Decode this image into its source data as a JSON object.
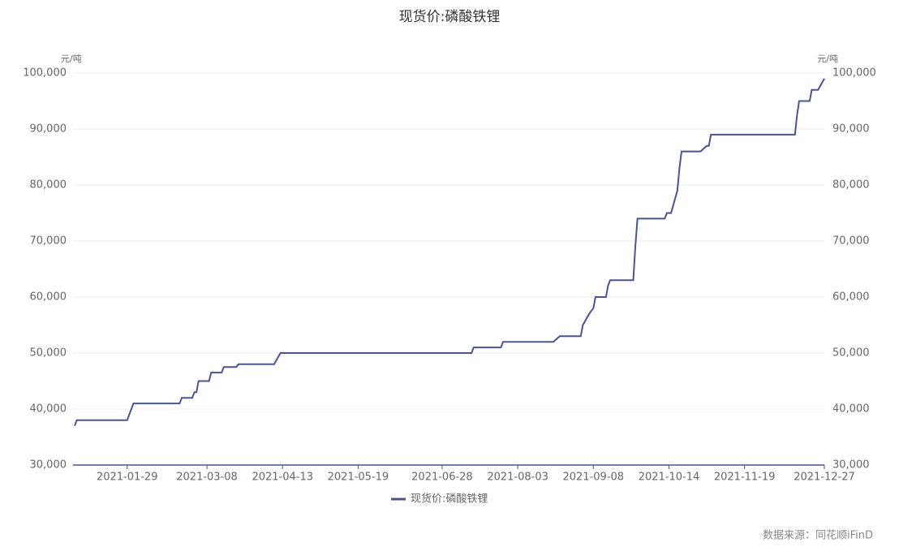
{
  "chart_data": {
    "type": "line",
    "title": "现货价:磷酸铁锂",
    "y_unit": "元/吨",
    "y2_unit": "元/吨",
    "source": "数据来源：同花顺iFinD",
    "x": [
      "2021-01-04",
      "2021-01-05",
      "2021-01-29",
      "2021-02-01",
      "2021-02-23",
      "2021-02-24",
      "2021-03-01",
      "2021-03-02",
      "2021-03-03",
      "2021-03-04",
      "2021-03-09",
      "2021-03-10",
      "2021-03-15",
      "2021-03-16",
      "2021-03-22",
      "2021-03-23",
      "2021-04-09",
      "2021-04-12",
      "2021-07-12",
      "2021-07-13",
      "2021-07-26",
      "2021-07-27",
      "2021-08-20",
      "2021-08-23",
      "2021-09-02",
      "2021-09-03",
      "2021-09-06",
      "2021-09-08",
      "2021-09-09",
      "2021-09-14",
      "2021-09-15",
      "2021-09-16",
      "2021-09-27",
      "2021-09-28",
      "2021-09-29",
      "2021-10-12",
      "2021-10-13",
      "2021-10-15",
      "2021-10-18",
      "2021-10-19",
      "2021-10-20",
      "2021-10-29",
      "2021-11-01",
      "2021-11-02",
      "2021-11-03",
      "2021-12-13",
      "2021-12-14",
      "2021-12-15",
      "2021-12-20",
      "2021-12-21",
      "2021-12-24",
      "2021-12-27"
    ],
    "series": [
      {
        "name": "现货价:磷酸铁锂",
        "color": "#4a5490",
        "values": [
          37000,
          38000,
          38000,
          41000,
          41000,
          42000,
          42000,
          43000,
          43000,
          45000,
          45000,
          46500,
          46500,
          47500,
          47500,
          48000,
          48000,
          50000,
          50000,
          51000,
          51000,
          52000,
          52000,
          53000,
          53000,
          55000,
          57000,
          58000,
          60000,
          60000,
          62000,
          63000,
          63000,
          69000,
          74000,
          74000,
          75000,
          75000,
          79000,
          83000,
          86000,
          86000,
          87000,
          87000,
          89000,
          89000,
          92500,
          95000,
          95000,
          97000,
          97000,
          99000
        ]
      }
    ],
    "xticks": [
      "2021-01-29",
      "2021-03-08",
      "2021-04-13",
      "2021-05-19",
      "2021-06-28",
      "2021-08-03",
      "2021-09-08",
      "2021-10-14",
      "2021-11-19",
      "2021-12-27"
    ],
    "ylim": [
      30000,
      100000
    ],
    "yticks": [
      {
        "value": 30000,
        "label": "30,000"
      },
      {
        "value": 40000,
        "label": "40,000"
      },
      {
        "value": 50000,
        "label": "50,000"
      },
      {
        "value": 60000,
        "label": "60,000"
      },
      {
        "value": 70000,
        "label": "70,000"
      },
      {
        "value": 80000,
        "label": "80,000"
      },
      {
        "value": 90000,
        "label": "90,000"
      },
      {
        "value": 100000,
        "label": "100,000"
      }
    ],
    "y2lim": [
      30000,
      100000
    ],
    "y2ticks": [
      {
        "value": 30000,
        "label": "30,000"
      },
      {
        "value": 40000,
        "label": "40,000"
      },
      {
        "value": 50000,
        "label": "50,000"
      },
      {
        "value": 60000,
        "label": "60,000"
      },
      {
        "value": 70000,
        "label": "70,000"
      },
      {
        "value": 80000,
        "label": "80,000"
      },
      {
        "value": 90000,
        "label": "90,000"
      },
      {
        "value": 100000,
        "label": "100,000"
      }
    ],
    "grid": true
  }
}
